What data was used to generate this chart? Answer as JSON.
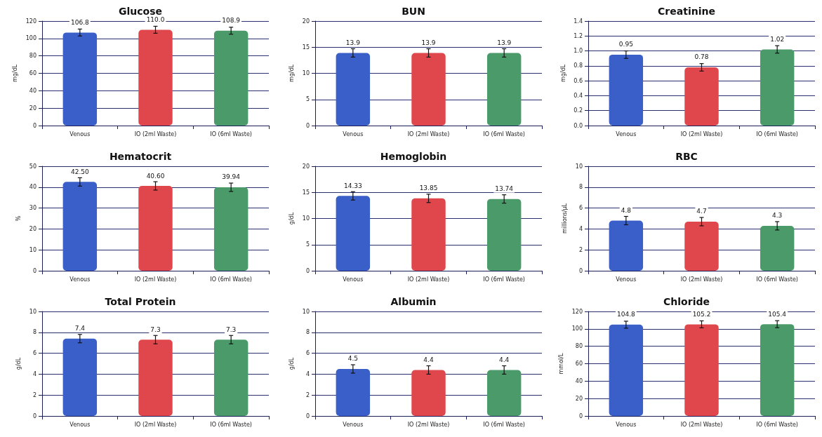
{
  "chart_data": [
    {
      "type": "bar",
      "title": "Glucose",
      "ylabel": "mg/dL",
      "categories": [
        "Venous",
        "IO (2ml Waste)",
        "IO (6ml Waste)"
      ],
      "values": [
        106.8,
        110.0,
        108.9
      ],
      "value_labels": [
        "106.8",
        "110.0",
        "108.9"
      ],
      "errors": [
        4,
        4,
        4
      ],
      "colors": [
        "#3a5fc8",
        "#e0474c",
        "#4a9a6a"
      ],
      "ylim": [
        0,
        120
      ],
      "yticks": [
        0,
        20,
        40,
        60,
        80,
        100,
        120
      ],
      "grid": "y"
    },
    {
      "type": "bar",
      "title": "BUN",
      "ylabel": "mg/dL",
      "categories": [
        "Venous",
        "IO (2ml Waste)",
        "IO (6ml Waste)"
      ],
      "values": [
        13.9,
        13.9,
        13.9
      ],
      "value_labels": [
        "13.9",
        "13.9",
        "13.9"
      ],
      "errors": [
        0.8,
        0.8,
        0.8
      ],
      "colors": [
        "#3a5fc8",
        "#e0474c",
        "#4a9a6a"
      ],
      "ylim": [
        0,
        20
      ],
      "yticks": [
        0,
        5,
        10,
        15,
        20
      ],
      "grid": "y"
    },
    {
      "type": "bar",
      "title": "Creatinine",
      "ylabel": "mg/dL",
      "categories": [
        "Venous",
        "IO (2ml Waste)",
        "IO (6ml Waste)"
      ],
      "values": [
        0.95,
        0.78,
        1.02
      ],
      "value_labels": [
        "0.95",
        "0.78",
        "1.02"
      ],
      "errors": [
        0.05,
        0.05,
        0.05
      ],
      "colors": [
        "#3a5fc8",
        "#e0474c",
        "#4a9a6a"
      ],
      "ylim": [
        0,
        1.4
      ],
      "yticks": [
        {
          "value": 0,
          "label": "0.0"
        },
        0.2,
        0.4,
        0.6,
        0.8,
        {
          "value": 1,
          "label": "1.0"
        },
        1.2,
        1.4
      ],
      "grid": "y"
    },
    {
      "type": "bar",
      "title": "Hematocrit",
      "ylabel": "%",
      "categories": [
        "Venous",
        "IO (2ml Waste)",
        "IO (6ml Waste)"
      ],
      "values": [
        42.5,
        40.6,
        39.94
      ],
      "value_labels": [
        "42.50",
        "40.60",
        "39.94"
      ],
      "errors": [
        2,
        2,
        2
      ],
      "colors": [
        "#3a5fc8",
        "#e0474c",
        "#4a9a6a"
      ],
      "ylim": [
        0,
        50
      ],
      "yticks": [
        0,
        10,
        20,
        30,
        40,
        50
      ],
      "grid": "y"
    },
    {
      "type": "bar",
      "title": "Hemoglobin",
      "ylabel": "g/dL",
      "categories": [
        "Venous",
        "IO (2ml Waste)",
        "IO (6ml Waste)"
      ],
      "values": [
        14.33,
        13.85,
        13.74
      ],
      "value_labels": [
        "14.33",
        "13.85",
        "13.74"
      ],
      "errors": [
        0.8,
        0.8,
        0.8
      ],
      "colors": [
        "#3a5fc8",
        "#e0474c",
        "#4a9a6a"
      ],
      "ylim": [
        0,
        20
      ],
      "yticks": [
        0,
        5,
        10,
        15,
        20
      ],
      "grid": "y"
    },
    {
      "type": "bar",
      "title": "RBC",
      "ylabel": "millions/μL",
      "categories": [
        "Venous",
        "IO (2ml Waste)",
        "IO (6ml Waste)"
      ],
      "values": [
        4.8,
        4.7,
        4.3
      ],
      "value_labels": [
        "4.8",
        "4.7",
        "4.3"
      ],
      "errors": [
        0.4,
        0.4,
        0.4
      ],
      "colors": [
        "#3a5fc8",
        "#e0474c",
        "#4a9a6a"
      ],
      "ylim": [
        0,
        10
      ],
      "yticks": [
        0,
        2,
        4,
        6,
        8,
        10
      ],
      "grid": "y"
    },
    {
      "type": "bar",
      "title": "Total Protein",
      "ylabel": "g/dL",
      "categories": [
        "Venous",
        "IO (2ml Waste)",
        "IO (6ml Waste)"
      ],
      "values": [
        7.4,
        7.3,
        7.3
      ],
      "value_labels": [
        "7.4",
        "7.3",
        "7.3"
      ],
      "errors": [
        0.4,
        0.4,
        0.4
      ],
      "colors": [
        "#3a5fc8",
        "#e0474c",
        "#4a9a6a"
      ],
      "ylim": [
        0,
        10
      ],
      "yticks": [
        0,
        2,
        4,
        6,
        8,
        10
      ],
      "grid": "y"
    },
    {
      "type": "bar",
      "title": "Albumin",
      "ylabel": "g/dL",
      "categories": [
        "Venous",
        "IO (2ml Waste)",
        "IO (6ml Waste)"
      ],
      "values": [
        4.5,
        4.4,
        4.4
      ],
      "value_labels": [
        "4.5",
        "4.4",
        "4.4"
      ],
      "errors": [
        0.4,
        0.4,
        0.4
      ],
      "colors": [
        "#3a5fc8",
        "#e0474c",
        "#4a9a6a"
      ],
      "ylim": [
        0,
        10
      ],
      "yticks": [
        0,
        2,
        4,
        6,
        8,
        10
      ],
      "grid": "y"
    },
    {
      "type": "bar",
      "title": "Chloride",
      "ylabel": "mmol/L",
      "categories": [
        "Venous",
        "IO (2ml Waste)",
        "IO (6ml Waste)"
      ],
      "values": [
        104.8,
        105.2,
        105.4
      ],
      "value_labels": [
        "104.8",
        "105.2",
        "105.4"
      ],
      "errors": [
        4,
        4,
        4
      ],
      "colors": [
        "#3a5fc8",
        "#e0474c",
        "#4a9a6a"
      ],
      "ylim": [
        0,
        120
      ],
      "yticks": [
        0,
        20,
        40,
        60,
        80,
        100,
        120
      ],
      "grid": "y"
    }
  ]
}
